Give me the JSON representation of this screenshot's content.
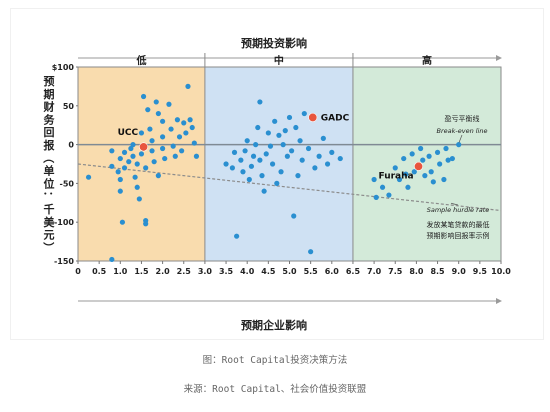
{
  "chart_data": {
    "type": "scatter",
    "title": "预期投资影响",
    "xlabel": "预期企业影响",
    "ylabel": "预期财务回报（单位：千美元）",
    "xlim": [
      0,
      10
    ],
    "ylim": [
      -150,
      100
    ],
    "x_ticks": [
      "0",
      "0.5",
      "1.0",
      "1.5",
      "2.0",
      "2.5",
      "3.0",
      "3.5",
      "4.0",
      "4.5",
      "5.0",
      "5.5",
      "6.0",
      "6.5",
      "7.0",
      "7.5",
      "8.0",
      "8.5",
      "9.0",
      "9.5",
      "10.0"
    ],
    "y_ticks": [
      "$100",
      "50",
      "0",
      "-50",
      "-100",
      "-150"
    ],
    "zones": [
      {
        "label": "低",
        "x_range": [
          0,
          3
        ],
        "color": "#f9dcae"
      },
      {
        "label": "中",
        "x_range": [
          3,
          6.5
        ],
        "color": "#cfe1f3"
      },
      {
        "label": "高",
        "x_range": [
          6.5,
          10
        ],
        "color": "#d3ead9"
      }
    ],
    "break_even": {
      "y": 0,
      "label_zh": "盈亏平衡线",
      "label_en": "Break-even line"
    },
    "hurdle_line": {
      "x": [
        0,
        10
      ],
      "y": [
        -25,
        -85
      ],
      "label_en": "Sample hurdle rate",
      "label_zh": [
        "发放某笔贷款的最低",
        "预期影响回报率示例"
      ]
    },
    "highlights": [
      {
        "name": "UCC",
        "x": 1.55,
        "y": -3
      },
      {
        "name": "GADC",
        "x": 5.55,
        "y": 35
      },
      {
        "name": "Furaha",
        "x": 8.05,
        "y": -28
      }
    ],
    "series": [
      {
        "color": "#2a8fd0",
        "points": [
          [
            0.25,
            -42
          ],
          [
            0.8,
            -8
          ],
          [
            0.8,
            -28
          ],
          [
            0.8,
            -148
          ],
          [
            0.95,
            -35
          ],
          [
            1.0,
            -18
          ],
          [
            1.0,
            -45
          ],
          [
            1.0,
            -60
          ],
          [
            1.05,
            -100
          ],
          [
            1.1,
            -10
          ],
          [
            1.1,
            -30
          ],
          [
            1.2,
            -22
          ],
          [
            1.25,
            -5
          ],
          [
            1.3,
            0
          ],
          [
            1.3,
            -15
          ],
          [
            1.35,
            -42
          ],
          [
            1.4,
            -25
          ],
          [
            1.4,
            -55
          ],
          [
            1.45,
            -70
          ],
          [
            1.5,
            15
          ],
          [
            1.5,
            -12
          ],
          [
            1.55,
            62
          ],
          [
            1.6,
            -30
          ],
          [
            1.6,
            -98
          ],
          [
            1.6,
            -102
          ],
          [
            1.65,
            45
          ],
          [
            1.7,
            20
          ],
          [
            1.75,
            5
          ],
          [
            1.75,
            -8
          ],
          [
            1.8,
            -22
          ],
          [
            1.85,
            55
          ],
          [
            1.9,
            40
          ],
          [
            1.9,
            -40
          ],
          [
            2.0,
            30
          ],
          [
            2.0,
            10
          ],
          [
            2.0,
            -5
          ],
          [
            2.05,
            -18
          ],
          [
            2.15,
            52
          ],
          [
            2.2,
            20
          ],
          [
            2.25,
            -2
          ],
          [
            2.3,
            -15
          ],
          [
            2.35,
            32
          ],
          [
            2.4,
            10
          ],
          [
            2.45,
            -8
          ],
          [
            2.5,
            28
          ],
          [
            2.55,
            15
          ],
          [
            2.6,
            75
          ],
          [
            2.65,
            32
          ],
          [
            2.7,
            22
          ],
          [
            2.75,
            2
          ],
          [
            2.8,
            -15
          ],
          [
            3.5,
            -25
          ],
          [
            3.65,
            -30
          ],
          [
            3.7,
            -10
          ],
          [
            3.75,
            -118
          ],
          [
            3.85,
            -20
          ],
          [
            3.9,
            -35
          ],
          [
            3.95,
            -8
          ],
          [
            4.0,
            5
          ],
          [
            4.05,
            -45
          ],
          [
            4.1,
            -28
          ],
          [
            4.15,
            -15
          ],
          [
            4.2,
            0
          ],
          [
            4.25,
            22
          ],
          [
            4.3,
            55
          ],
          [
            4.3,
            -20
          ],
          [
            4.35,
            -40
          ],
          [
            4.4,
            -60
          ],
          [
            4.45,
            -12
          ],
          [
            4.5,
            15
          ],
          [
            4.55,
            -2
          ],
          [
            4.6,
            -25
          ],
          [
            4.65,
            30
          ],
          [
            4.7,
            -50
          ],
          [
            4.75,
            12
          ],
          [
            4.8,
            -35
          ],
          [
            4.85,
            0
          ],
          [
            4.9,
            18
          ],
          [
            4.95,
            -15
          ],
          [
            5.0,
            35
          ],
          [
            5.05,
            -8
          ],
          [
            5.1,
            -92
          ],
          [
            5.15,
            22
          ],
          [
            5.2,
            -40
          ],
          [
            5.25,
            5
          ],
          [
            5.3,
            -20
          ],
          [
            5.35,
            40
          ],
          [
            5.45,
            -5
          ],
          [
            5.5,
            -138
          ],
          [
            5.6,
            -30
          ],
          [
            5.7,
            -15
          ],
          [
            5.8,
            8
          ],
          [
            5.9,
            -25
          ],
          [
            6.0,
            -10
          ],
          [
            6.2,
            -18
          ],
          [
            7.0,
            -45
          ],
          [
            7.05,
            -68
          ],
          [
            7.2,
            -55
          ],
          [
            7.35,
            -65
          ],
          [
            7.5,
            -30
          ],
          [
            7.6,
            -45
          ],
          [
            7.7,
            -18
          ],
          [
            7.75,
            -38
          ],
          [
            7.8,
            -55
          ],
          [
            7.9,
            -12
          ],
          [
            7.95,
            -35
          ],
          [
            8.1,
            -5
          ],
          [
            8.15,
            -20
          ],
          [
            8.2,
            -40
          ],
          [
            8.3,
            -15
          ],
          [
            8.35,
            -35
          ],
          [
            8.4,
            -48
          ],
          [
            8.5,
            -10
          ],
          [
            8.55,
            -25
          ],
          [
            8.65,
            -45
          ],
          [
            8.7,
            -5
          ],
          [
            8.75,
            -20
          ],
          [
            8.85,
            -18
          ],
          [
            9.0,
            0
          ]
        ]
      }
    ]
  },
  "caption": "图：Root Capital投资决策方法",
  "source": "来源：Root Capital、社会价值投资联盟",
  "colors": {
    "dot": "#2a8fd0",
    "highlight": "#e8553d",
    "axis_line": "#9a9a9a",
    "break_even": "#7f8a94",
    "hurdle": "#8c8c8c",
    "title_text": "#222222"
  }
}
